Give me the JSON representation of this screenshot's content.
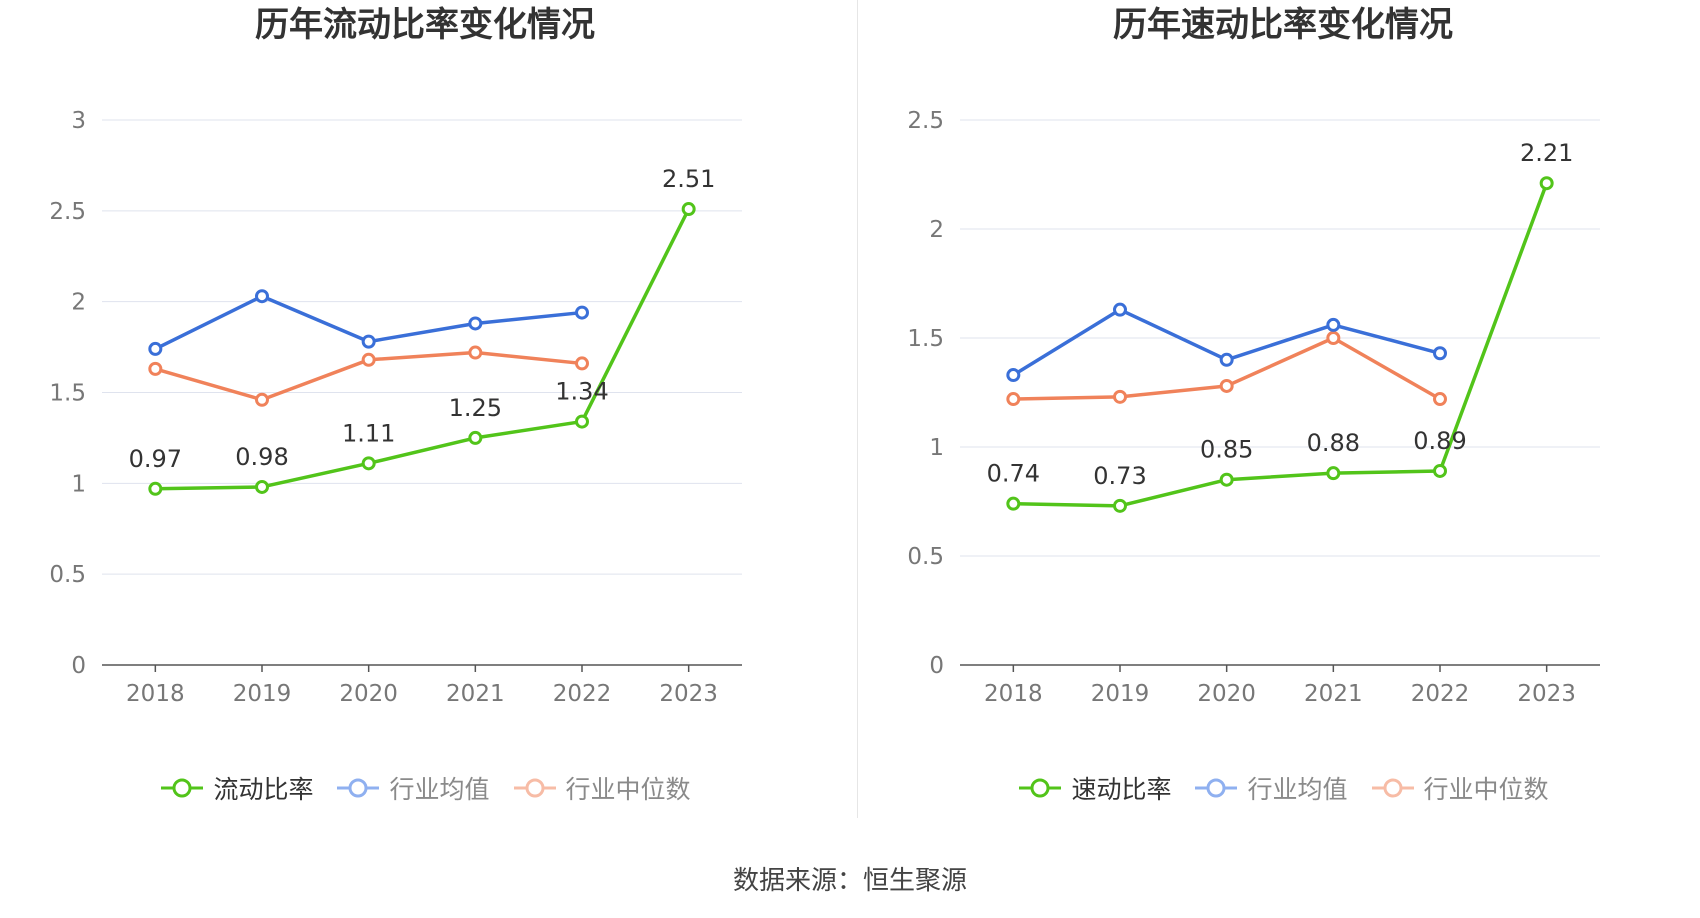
{
  "chart_data": [
    {
      "type": "line",
      "title": "历年流动比率变化情况",
      "categories": [
        "2018",
        "2019",
        "2020",
        "2021",
        "2022",
        "2023"
      ],
      "yticks": [
        "0",
        "0.5",
        "1",
        "1.5",
        "2",
        "2.5",
        "3"
      ],
      "ylim": [
        0,
        3
      ],
      "grid": true,
      "legend_position": "bottom",
      "series": [
        {
          "name": "流动比率",
          "color": "#52c41a",
          "values": [
            0.97,
            0.98,
            1.11,
            1.25,
            1.34,
            2.51
          ],
          "labels": [
            "0.97",
            "0.98",
            "1.11",
            "1.25",
            "1.34",
            "2.51"
          ]
        },
        {
          "name": "行业均值",
          "color": "#3a6fd8",
          "values": [
            1.74,
            2.03,
            1.78,
            1.88,
            1.94,
            null
          ]
        },
        {
          "name": "行业中位数",
          "color": "#f0825a",
          "values": [
            1.63,
            1.46,
            1.68,
            1.72,
            1.66,
            null
          ]
        }
      ]
    },
    {
      "type": "line",
      "title": "历年速动比率变化情况",
      "categories": [
        "2018",
        "2019",
        "2020",
        "2021",
        "2022",
        "2023"
      ],
      "yticks": [
        "0",
        "0.5",
        "1",
        "1.5",
        "2",
        "2.5"
      ],
      "ylim": [
        0,
        2.5
      ],
      "grid": true,
      "legend_position": "bottom",
      "series": [
        {
          "name": "速动比率",
          "color": "#52c41a",
          "values": [
            0.74,
            0.73,
            0.85,
            0.88,
            0.89,
            2.21
          ],
          "labels": [
            "0.74",
            "0.73",
            "0.85",
            "0.88",
            "0.89",
            "2.21"
          ]
        },
        {
          "name": "行业均值",
          "color": "#3a6fd8",
          "values": [
            1.33,
            1.63,
            1.4,
            1.56,
            1.43,
            null
          ]
        },
        {
          "name": "行业中位数",
          "color": "#f0825a",
          "values": [
            1.22,
            1.23,
            1.28,
            1.5,
            1.22,
            null
          ]
        }
      ]
    }
  ],
  "footer": {
    "source": "数据来源：恒生聚源"
  }
}
